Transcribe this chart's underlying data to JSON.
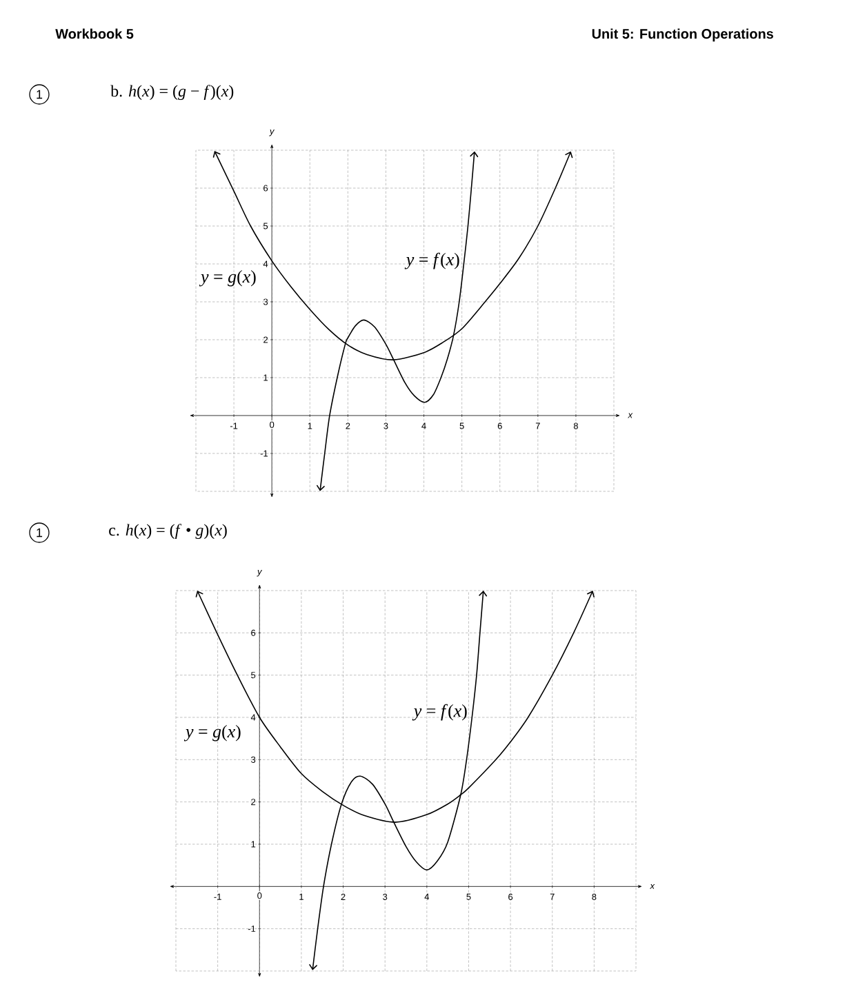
{
  "chart_data": [
    {
      "type": "line",
      "title": "b. *h*(*x*) = (*g* − *f*)(*x*)",
      "xlabel": "x",
      "ylabel": "y",
      "xlim": [
        -2,
        9
      ],
      "ylim": [
        -2,
        7
      ],
      "xticks": [
        -1,
        0,
        1,
        2,
        3,
        4,
        5,
        6,
        7,
        8
      ],
      "yticks": [
        -1,
        1,
        2,
        3,
        4,
        5,
        6
      ],
      "grid": true,
      "series": [
        {
          "name": "*y* = *f*(*x*)",
          "color": "#000000",
          "x": [
            1.27,
            1.39,
            1.52,
            1.72,
            1.93,
            2.0,
            2.2,
            2.42,
            2.7,
            3.0,
            3.2,
            3.5,
            3.75,
            4.02,
            4.25,
            4.45,
            4.62,
            4.78,
            4.93,
            5.05,
            5.16,
            5.25,
            5.33
          ],
          "values": [
            -1.97,
            -1.0,
            0,
            1.0,
            1.88,
            2.05,
            2.37,
            2.52,
            2.34,
            1.88,
            1.48,
            0.87,
            0.52,
            0.35,
            0.55,
            1.0,
            1.5,
            2.11,
            3.0,
            4.0,
            5.0,
            6.0,
            6.95
          ]
        },
        {
          "name": "*y* = *g*(*x*)",
          "color": "#000000",
          "x": [
            -1.5,
            -1,
            -0.56,
            0,
            0.5,
            1,
            1.5,
            2,
            2.5,
            3.2,
            4,
            4.5,
            5,
            5.61,
            6,
            6.5,
            7,
            7.46,
            7.86
          ],
          "values": [
            6.96,
            5.92,
            5.0,
            4.08,
            3.4,
            2.8,
            2.27,
            1.86,
            1.61,
            1.47,
            1.66,
            1.93,
            2.29,
            3.0,
            3.48,
            4.15,
            5.0,
            6.0,
            6.95
          ]
        }
      ],
      "annotations": [
        "Workbook 5",
        "Unit 5: Function Operations",
        "1"
      ]
    },
    {
      "type": "line",
      "title": "c. *h*(*x*) = (*f* • *g*)(*x*)",
      "xlabel": "x",
      "ylabel": "y",
      "xlim": [
        -2,
        9
      ],
      "ylim": [
        -2,
        7
      ],
      "xticks": [
        -1,
        0,
        1,
        2,
        3,
        4,
        5,
        6,
        7,
        8
      ],
      "yticks": [
        -1,
        1,
        2,
        3,
        4,
        5,
        6
      ],
      "grid": true,
      "series": [
        {
          "name": "*y* = *f*(*x*)",
          "color": "#000000",
          "x": [
            1.27,
            1.39,
            1.53,
            1.72,
            1.96,
            2.2,
            2.41,
            2.7,
            3.0,
            3.2,
            3.5,
            3.75,
            4.0,
            4.25,
            4.5,
            4.81,
            4.95,
            5.08,
            5.19,
            5.27,
            5.35
          ],
          "values": [
            -1.96,
            -1.0,
            0,
            1.0,
            1.95,
            2.48,
            2.61,
            2.42,
            1.95,
            1.54,
            0.95,
            0.58,
            0.39,
            0.6,
            1.05,
            2.17,
            3.0,
            4.0,
            5.0,
            6.0,
            6.98
          ]
        },
        {
          "name": "*y* = *g*(*x*)",
          "color": "#000000",
          "x": [
            -1.48,
            -1.02,
            -0.53,
            0,
            0.5,
            1,
            1.5,
            2,
            2.5,
            3.25,
            4,
            4.5,
            4.81,
            5.0,
            5.65,
            6.0,
            6.42,
            7.0,
            7.51,
            7.96
          ],
          "values": [
            6.98,
            6.0,
            5.0,
            4.0,
            3.3,
            2.67,
            2.25,
            1.92,
            1.68,
            1.52,
            1.7,
            1.95,
            2.17,
            2.33,
            3.0,
            3.42,
            4.0,
            5.0,
            6.0,
            6.98
          ]
        }
      ],
      "annotations": [
        "1"
      ]
    }
  ]
}
